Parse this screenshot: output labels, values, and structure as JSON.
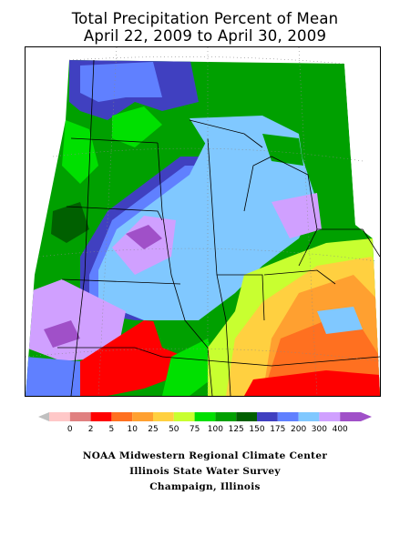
{
  "title": {
    "line1": "Total Precipitation Percent of Mean",
    "line2": "April 22, 2009 to April 30, 2009"
  },
  "legend": {
    "labels": [
      "0",
      "2",
      "5",
      "10",
      "25",
      "50",
      "75",
      "100",
      "125",
      "150",
      "175",
      "200",
      "300",
      "400"
    ],
    "colors": [
      "#ffc8c8",
      "#e08080",
      "#ff0000",
      "#ff7020",
      "#ffa030",
      "#ffd040",
      "#c8ff30",
      "#00e000",
      "#00a000",
      "#006000",
      "#4040c0",
      "#6080ff",
      "#80c8ff",
      "#d0a0ff",
      "#a050c8"
    ],
    "end_left_color": "#c0c0c0",
    "end_right_color": "#a050c8"
  },
  "footer": {
    "line1": "NOAA Midwestern Regional Climate Center",
    "line2": "Illinois State Water Survey",
    "line3": "Champaign, Illinois"
  },
  "map": {
    "category_colors": {
      "deep_blue": "#4040c0",
      "med_blue": "#6080ff",
      "light_blue": "#80c8ff",
      "lavender": "#d0a0ff",
      "purple": "#a050c8",
      "green": "#00a000",
      "dark_green": "#006000",
      "bright_green": "#00e000",
      "yellow_green": "#c8ff30",
      "yellow": "#ffd040",
      "orange": "#ffa030",
      "orange_red": "#ff7020",
      "red": "#ff0000"
    }
  }
}
